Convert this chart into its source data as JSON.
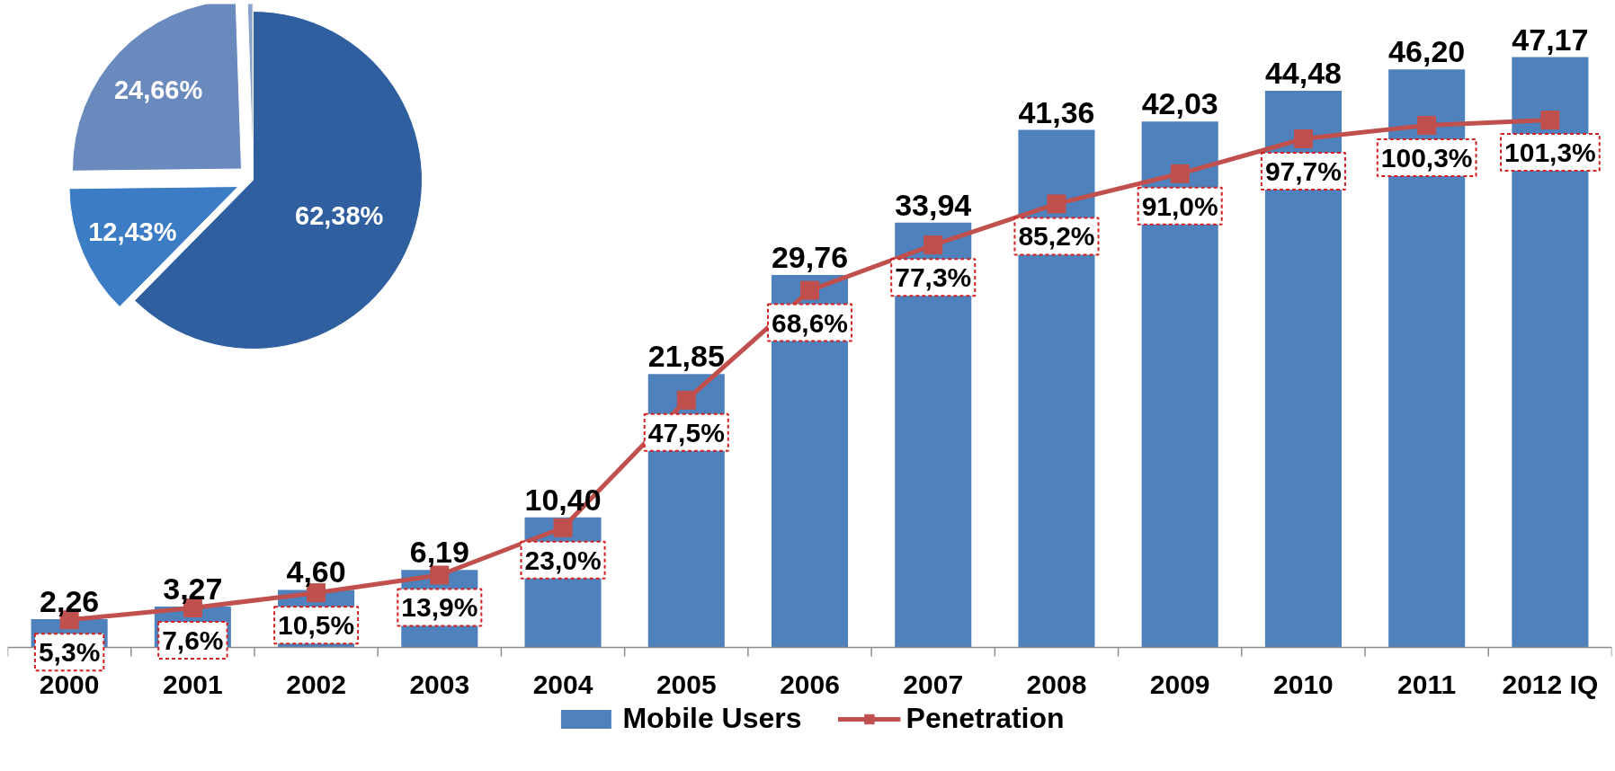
{
  "chart_data": [
    {
      "type": "bar",
      "categories": [
        "2000",
        "2001",
        "2002",
        "2003",
        "2004",
        "2005",
        "2006",
        "2007",
        "2008",
        "2009",
        "2010",
        "2011",
        "2012 IQ"
      ],
      "series": [
        {
          "name": "Mobile Users",
          "color": "#4f81bd",
          "values": [
            2.26,
            3.27,
            4.6,
            6.19,
            10.4,
            21.85,
            29.76,
            33.94,
            41.36,
            42.03,
            44.48,
            46.2,
            47.17
          ],
          "value_labels": [
            "2,26",
            "3,27",
            "4,60",
            "6,19",
            "10,40",
            "21,85",
            "29,76",
            "33,94",
            "41,36",
            "42,03",
            "44,48",
            "46,20",
            "47,17"
          ]
        },
        {
          "name": "Penetration",
          "type": "line",
          "axis": "y2",
          "color": "#c0504d",
          "marker": "square",
          "values": [
            5.3,
            7.6,
            10.5,
            13.9,
            23.0,
            47.5,
            68.6,
            77.3,
            85.2,
            91.0,
            97.7,
            100.3,
            101.3
          ],
          "value_labels": [
            "5,3%",
            "7,6%",
            "10,5%",
            "13,9%",
            "23,0%",
            "47,5%",
            "68,6%",
            "77,3%",
            "85,2%",
            "91,0%",
            "97,7%",
            "100,3%",
            "101,3%"
          ]
        }
      ],
      "legend": "bottom",
      "grid": false,
      "tick_labels": "x"
    },
    {
      "type": "pie",
      "categories": [
        null,
        null,
        null,
        null
      ],
      "values": [
        62.38,
        12.43,
        24.66,
        0.53
      ],
      "colors": [
        "#2f5f9f",
        "#3b7cc4",
        "#6a89bd",
        "#8aa3cc"
      ],
      "value_labels": [
        "62,38%",
        "12,43%",
        "24,66%",
        null
      ]
    }
  ]
}
